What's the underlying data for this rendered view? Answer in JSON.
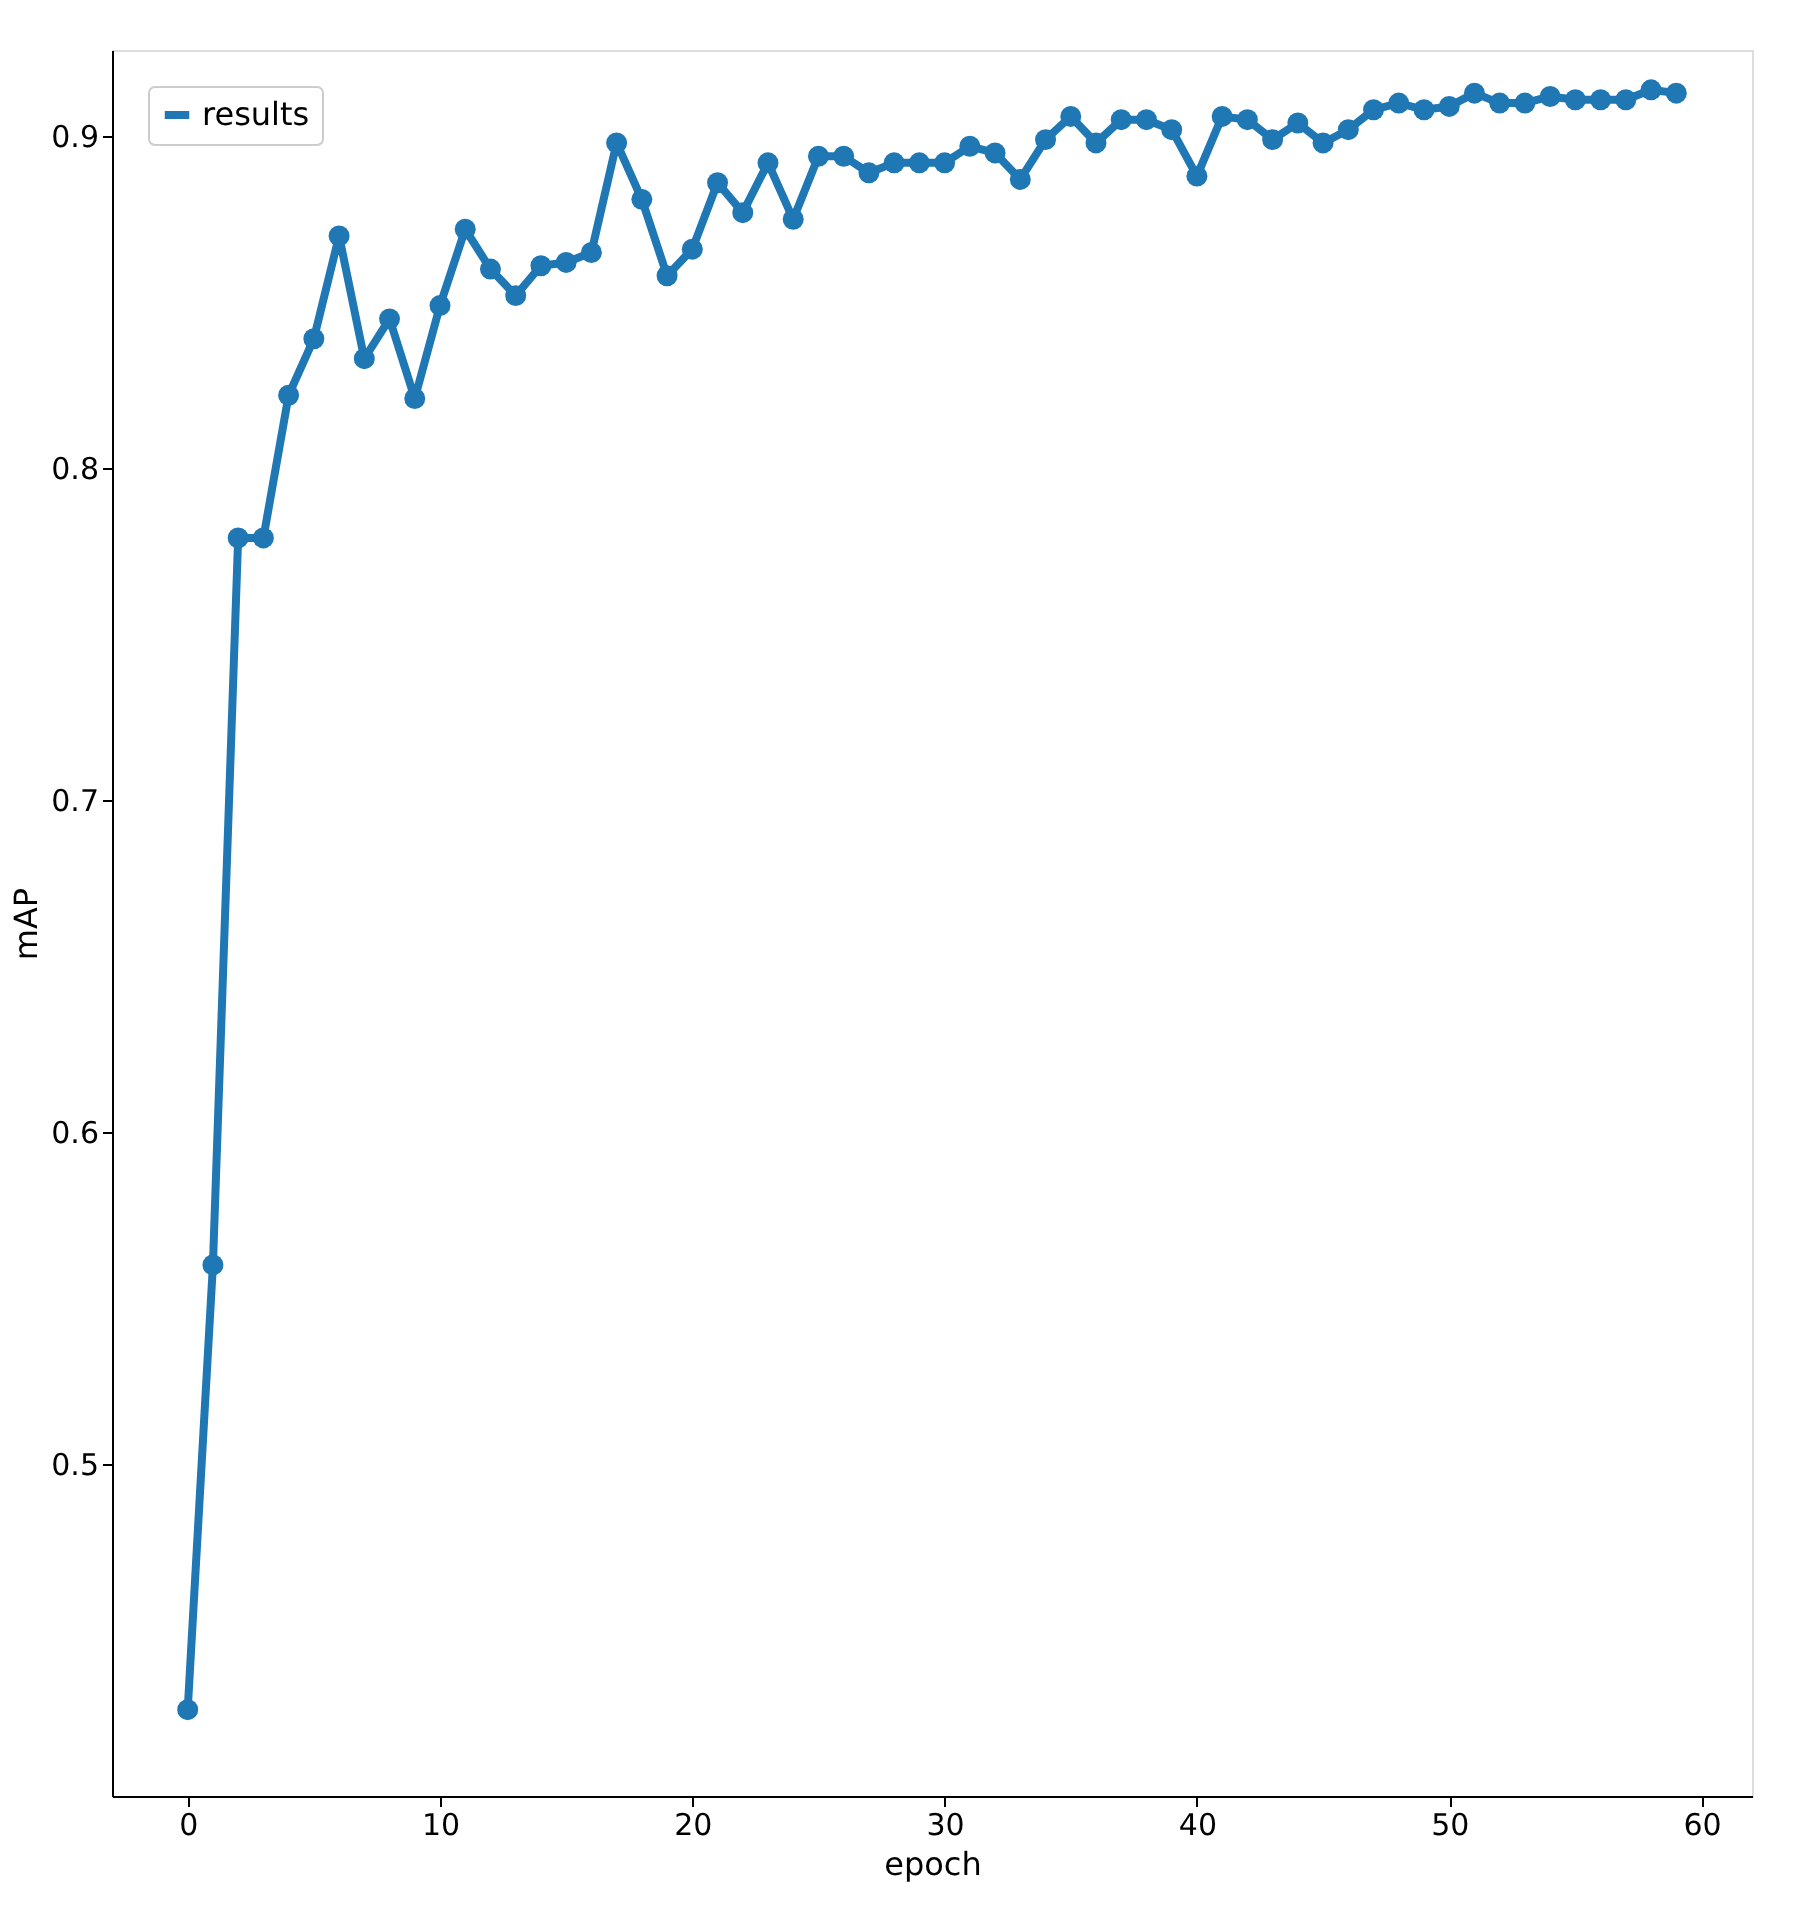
{
  "chart_data": {
    "type": "line",
    "xlabel": "epoch",
    "ylabel": "mAP",
    "x": [
      0,
      1,
      2,
      3,
      4,
      5,
      6,
      7,
      8,
      9,
      10,
      11,
      12,
      13,
      14,
      15,
      16,
      17,
      18,
      19,
      20,
      21,
      22,
      23,
      24,
      25,
      26,
      27,
      28,
      29,
      30,
      31,
      32,
      33,
      34,
      35,
      36,
      37,
      38,
      39,
      40,
      41,
      42,
      43,
      44,
      45,
      46,
      47,
      48,
      49,
      50,
      51,
      52,
      53,
      54,
      55,
      56,
      57,
      58,
      59
    ],
    "series": [
      {
        "name": "results",
        "color": "#1f77b4",
        "values": [
          0.426,
          0.56,
          0.779,
          0.779,
          0.822,
          0.839,
          0.87,
          0.833,
          0.845,
          0.821,
          0.849,
          0.872,
          0.86,
          0.852,
          0.861,
          0.862,
          0.865,
          0.898,
          0.881,
          0.858,
          0.866,
          0.886,
          0.877,
          0.892,
          0.875,
          0.894,
          0.894,
          0.889,
          0.892,
          0.892,
          0.892,
          0.897,
          0.895,
          0.887,
          0.899,
          0.906,
          0.898,
          0.905,
          0.905,
          0.902,
          0.888,
          0.906,
          0.905,
          0.899,
          0.904,
          0.898,
          0.902,
          0.908,
          0.91,
          0.908,
          0.909,
          0.913,
          0.91,
          0.91,
          0.912,
          0.911,
          0.911,
          0.911,
          0.914,
          0.913
        ]
      }
    ],
    "xlim": [
      -3,
      62
    ],
    "xticks": [
      0,
      10,
      20,
      30,
      40,
      50,
      60
    ],
    "ylim": [
      0.4,
      0.926
    ],
    "yticks": [
      0.5,
      0.6,
      0.7,
      0.8,
      0.9
    ],
    "grid": false,
    "legend": "top left",
    "marker": "circle",
    "line_style": "solid"
  }
}
